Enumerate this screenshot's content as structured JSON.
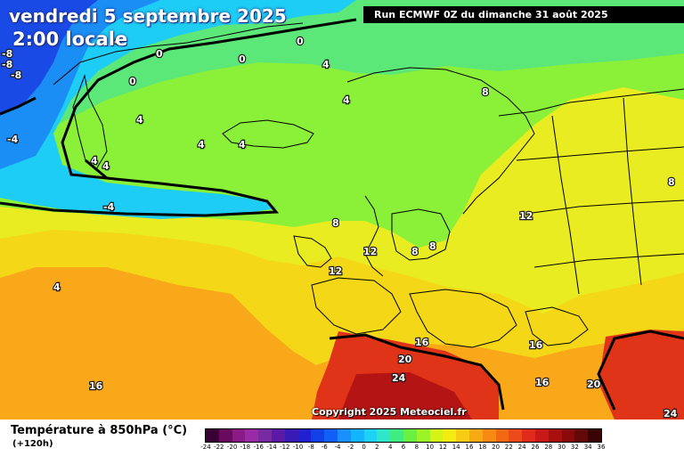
{
  "header": {
    "date_text": "vendredi 5 septembre 2025",
    "time_text": "2:00 locale",
    "run_text": "Run ECMWF 0Z du dimanche 31 août 2025"
  },
  "footer": {
    "parameter_text": "Température à 850hPa (°C)",
    "lead_text": "(+120h)",
    "copyright_text": "Copyright 2025 Meteociel.fr"
  },
  "legend": {
    "ticks": [
      "-24",
      "-22",
      "-20",
      "-18",
      "-16",
      "-14",
      "-12",
      "-10",
      "-8",
      "-6",
      "-4",
      "-2",
      "0",
      "2",
      "4",
      "6",
      "8",
      "10",
      "12",
      "14",
      "16",
      "18",
      "20",
      "22",
      "24",
      "26",
      "28",
      "30",
      "32",
      "34",
      "36"
    ],
    "colors": [
      "#3a0033",
      "#6a0a5e",
      "#8a1a86",
      "#9a2aa6",
      "#7a2aa0",
      "#5a1aa6",
      "#3a1ab4",
      "#2020d0",
      "#1040e6",
      "#1060f8",
      "#1a90ff",
      "#14b4ff",
      "#1ed2f5",
      "#2ee6c8",
      "#40ec80",
      "#6af040",
      "#9af428",
      "#d4f416",
      "#f4ec10",
      "#f8cc14",
      "#f8aa14",
      "#f88a14",
      "#f46814",
      "#ec4a18",
      "#e02a1a",
      "#c81818",
      "#a81010",
      "#880a0a",
      "#640808",
      "#3a0404"
    ]
  },
  "isotherm_labels": [
    "0",
    "0",
    "0",
    "0",
    "4",
    "4",
    "4",
    "4",
    "4",
    "4",
    "4",
    "4",
    "4",
    "-4",
    "-4",
    "-4",
    "-8",
    "-8",
    "-8",
    "8",
    "8",
    "8",
    "8",
    "8",
    "12",
    "12",
    "12",
    "16",
    "16",
    "16",
    "16",
    "20",
    "20",
    "24",
    "24"
  ],
  "colors": {
    "deep_blue": "#1a4ae6",
    "sky_blue": "#1ecdf5",
    "light_green": "#6ce854",
    "green": "#8af038",
    "yellow_green": "#d8ec2a",
    "yellow": "#f4ec10",
    "orange": "#f8a818",
    "dark_orange": "#f47a18",
    "red": "#e03418",
    "dark_red": "#b41414"
  }
}
